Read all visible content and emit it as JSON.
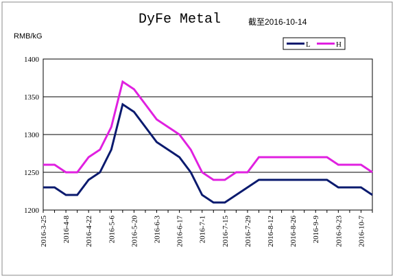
{
  "chart_data": {
    "type": "line",
    "title": "DyFe Metal",
    "annotation": "截至2016-10-14",
    "y_label": "RMB/kG",
    "categories": [
      "2016-3-25",
      null,
      "2016-4-8",
      null,
      "2016-4-22",
      null,
      "2016-5-6",
      null,
      "2016-5-20",
      null,
      "2016-6-3",
      null,
      "2016-6-17",
      null,
      "2016-7-1",
      null,
      "2016-7-15",
      null,
      "2016-7-29",
      null,
      "2016-8-12",
      null,
      "2016-8-26",
      null,
      "2016-9-9",
      null,
      "2016-9-23",
      null,
      "2016-10-7",
      null
    ],
    "series": [
      {
        "name": "L",
        "color": "#0a1a6e",
        "values": [
          1230,
          1230,
          1220,
          1220,
          1240,
          1250,
          1280,
          1340,
          1330,
          1310,
          1290,
          1280,
          1270,
          1250,
          1220,
          1210,
          1210,
          1220,
          1230,
          1240,
          1240,
          1240,
          1240,
          1240,
          1240,
          1240,
          1230,
          1230,
          1230,
          1220
        ]
      },
      {
        "name": "H",
        "color": "#e020e0",
        "values": [
          1260,
          1260,
          1250,
          1250,
          1270,
          1280,
          1310,
          1370,
          1360,
          1340,
          1320,
          1310,
          1300,
          1280,
          1250,
          1240,
          1240,
          1250,
          1250,
          1270,
          1270,
          1270,
          1270,
          1270,
          1270,
          1270,
          1260,
          1260,
          1260,
          1250
        ]
      }
    ],
    "ylim": [
      1200,
      1400
    ],
    "yticks": [
      1200,
      1250,
      1300,
      1350,
      1400
    ],
    "grid": true,
    "legend": "top-right"
  }
}
